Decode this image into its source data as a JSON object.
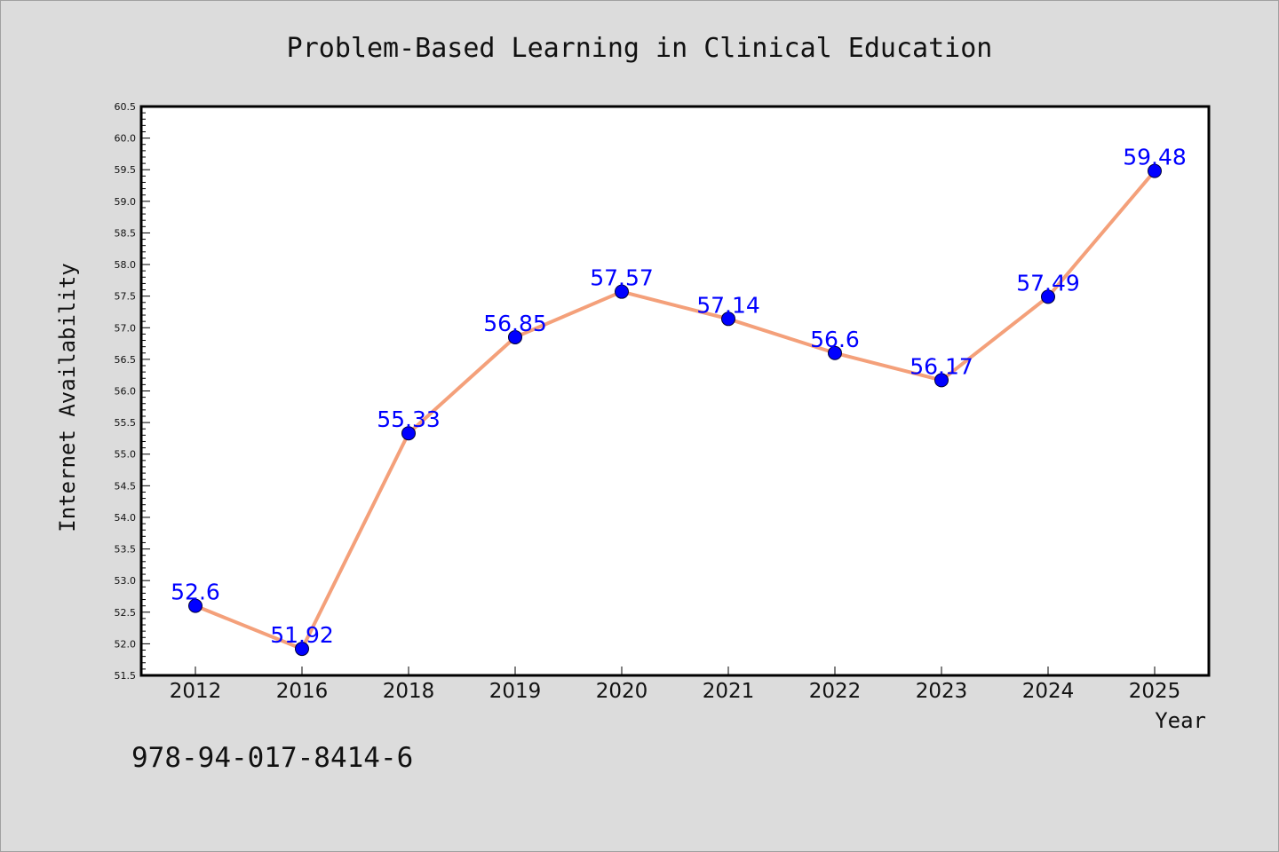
{
  "chart_data": {
    "type": "line",
    "title": "Problem-Based Learning in Clinical Education",
    "xlabel": "Year",
    "ylabel": "Internet Availability",
    "categories": [
      "2012",
      "2016",
      "2018",
      "2019",
      "2020",
      "2021",
      "2022",
      "2023",
      "2024",
      "2025"
    ],
    "series": [
      {
        "values": [
          52.6,
          51.92,
          55.33,
          56.85,
          57.57,
          57.14,
          56.6,
          56.17,
          57.49,
          59.48
        ],
        "data_labels": [
          "52.6",
          "51.92",
          "55.33",
          "56.85",
          "57.57",
          "57.14",
          "56.6",
          "56.17",
          "57.49",
          "59.48"
        ],
        "line_color": "#f4a07a",
        "marker_color": "#0000ff"
      }
    ],
    "ylim": [
      51.5,
      60.5
    ],
    "yticks": [
      "51.5",
      "52.0",
      "52.5",
      "53.0",
      "53.5",
      "54.0",
      "54.5",
      "55.0",
      "55.5",
      "56.0",
      "56.5",
      "57.0",
      "57.5",
      "58.0",
      "58.5",
      "59.0",
      "59.5",
      "60.0",
      "60.5"
    ],
    "grid": false,
    "legend": "none",
    "background_color": "#dcdcdc",
    "plot_background_color": "#ffffff"
  },
  "footer": {
    "isbn": "978-94-017-8414-6"
  }
}
